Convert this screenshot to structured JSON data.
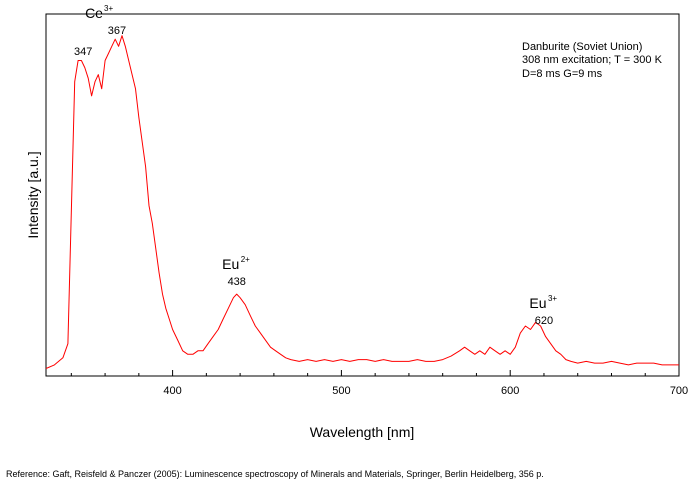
{
  "chart_data": {
    "type": "line",
    "title": "",
    "xlabel": "Wavelength [nm]",
    "ylabel": "Intensity [a.u.]",
    "xlim": [
      325,
      700
    ],
    "ylim": [
      0,
      1
    ],
    "x_ticks": [
      400,
      500,
      600,
      700
    ],
    "y_ticks": [],
    "grid": false,
    "line_color": "#ff0000",
    "info_lines": [
      "Danburite (Soviet Union)",
      "308 nm excitation; T = 300 K",
      "D=8 ms G=9 ms"
    ],
    "peak_annotations": [
      {
        "ion": "Ce",
        "charge": "3+",
        "peaks": [
          347,
          367
        ]
      },
      {
        "ion": "Eu",
        "charge": "2+",
        "peaks": [
          438
        ]
      },
      {
        "ion": "Eu",
        "charge": "3+",
        "peaks": [
          620
        ]
      }
    ],
    "series": [
      {
        "x": [
          325,
          330,
          335,
          338,
          340,
          342,
          344,
          346,
          348,
          350,
          352,
          354,
          356,
          358,
          360,
          362,
          364,
          366,
          368,
          370,
          372,
          374,
          376,
          378,
          380,
          382,
          384,
          386,
          388,
          390,
          392,
          394,
          396,
          398,
          400,
          403,
          406,
          409,
          412,
          415,
          418,
          421,
          424,
          427,
          430,
          433,
          436,
          438,
          440,
          443,
          446,
          449,
          452,
          455,
          458,
          461,
          464,
          467,
          470,
          475,
          480,
          485,
          490,
          495,
          500,
          505,
          510,
          515,
          520,
          525,
          530,
          535,
          540,
          545,
          550,
          555,
          560,
          565,
          570,
          573,
          576,
          579,
          582,
          585,
          588,
          591,
          594,
          597,
          600,
          603,
          606,
          609,
          612,
          615,
          618,
          621,
          624,
          627,
          630,
          633,
          636,
          640,
          645,
          650,
          655,
          660,
          665,
          670,
          675,
          680,
          685,
          690,
          695,
          700
        ],
        "y": [
          0.01,
          0.02,
          0.04,
          0.08,
          0.45,
          0.82,
          0.88,
          0.88,
          0.86,
          0.83,
          0.78,
          0.82,
          0.84,
          0.8,
          0.88,
          0.9,
          0.92,
          0.94,
          0.92,
          0.95,
          0.92,
          0.88,
          0.84,
          0.8,
          0.72,
          0.65,
          0.58,
          0.47,
          0.42,
          0.35,
          0.28,
          0.22,
          0.18,
          0.15,
          0.12,
          0.09,
          0.06,
          0.05,
          0.05,
          0.06,
          0.06,
          0.08,
          0.1,
          0.12,
          0.15,
          0.18,
          0.21,
          0.22,
          0.21,
          0.19,
          0.16,
          0.13,
          0.11,
          0.09,
          0.07,
          0.06,
          0.05,
          0.04,
          0.035,
          0.03,
          0.035,
          0.03,
          0.035,
          0.03,
          0.035,
          0.03,
          0.035,
          0.035,
          0.03,
          0.035,
          0.03,
          0.03,
          0.03,
          0.035,
          0.03,
          0.03,
          0.035,
          0.045,
          0.06,
          0.07,
          0.06,
          0.05,
          0.06,
          0.05,
          0.07,
          0.06,
          0.05,
          0.06,
          0.05,
          0.07,
          0.11,
          0.13,
          0.12,
          0.14,
          0.13,
          0.1,
          0.08,
          0.06,
          0.05,
          0.035,
          0.03,
          0.025,
          0.03,
          0.025,
          0.025,
          0.03,
          0.025,
          0.02,
          0.025,
          0.025,
          0.025,
          0.02,
          0.02,
          0.02
        ]
      }
    ]
  },
  "reference": "Reference: Gaft, Reisfeld & Panczer (2005): Luminescence spectroscopy of Minerals and Materials, Springer, Berlin Heidelberg, 356 p."
}
